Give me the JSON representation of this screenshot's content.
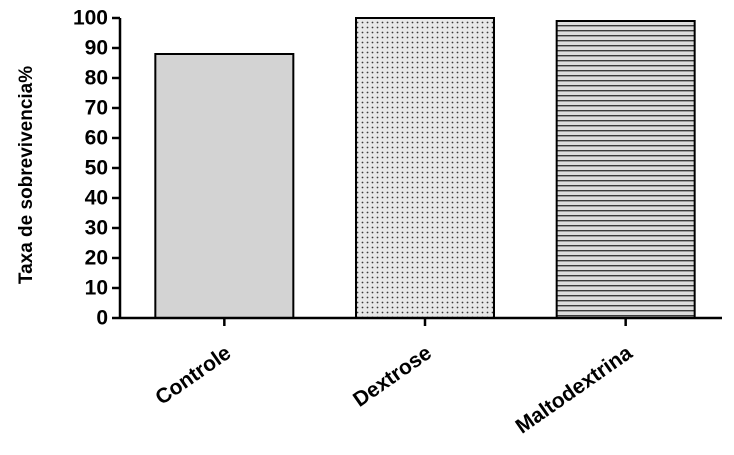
{
  "chart_data": {
    "type": "bar",
    "categories": [
      "Controle",
      "Dextrose",
      "Maltodextrina"
    ],
    "values": [
      88,
      100,
      99
    ],
    "ylabel": "Taxa de sobrevivencia%",
    "xlabel": "",
    "ylim": [
      0,
      100
    ],
    "yticks": [
      0,
      10,
      20,
      30,
      40,
      50,
      60,
      70,
      80,
      90,
      100
    ],
    "grid": false,
    "bar_fills": [
      "solid",
      "dots",
      "horizontal-lines"
    ],
    "bar_colors": [
      "#d3d3d3",
      "#e8e8e8",
      "#dcdcdc"
    ],
    "pattern_color": "#3a3a3a",
    "axis_color": "#000000"
  }
}
